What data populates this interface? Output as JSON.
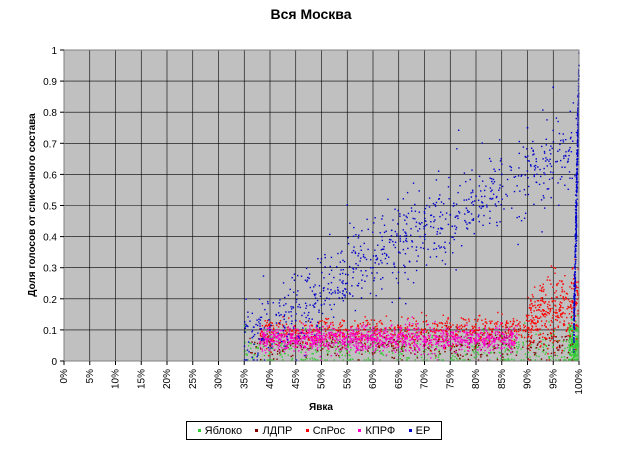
{
  "chart_data": {
    "type": "scatter",
    "title": "Вся Москва",
    "xlabel": "Явка",
    "ylabel": "Доля голосов от списочного состава",
    "xlim": [
      0,
      1
    ],
    "ylim": [
      0,
      1
    ],
    "x_ticks": [
      "0%",
      "5%",
      "10%",
      "15%",
      "20%",
      "25%",
      "30%",
      "35%",
      "40%",
      "45%",
      "50%",
      "55%",
      "60%",
      "65%",
      "70%",
      "75%",
      "80%",
      "85%",
      "90%",
      "95%",
      "100%"
    ],
    "y_ticks": [
      "0",
      "0.1",
      "0.2",
      "0.3",
      "0.4",
      "0.5",
      "0.6",
      "0.7",
      "0.8",
      "0.9",
      "1"
    ],
    "grid": true,
    "plot_background": "#c0c0c0",
    "legend_position": "bottom",
    "series": [
      {
        "name": "Яблоко",
        "color": "#33cc33",
        "clusters": [
          {
            "x": [
              0.35,
              0.99
            ],
            "y_center": [
              0.03,
              0.04
            ],
            "y_spread": 0.03
          },
          {
            "x": [
              0.98,
              1.0
            ],
            "y_center": [
              0.05,
              0.05
            ],
            "y_spread": 0.04
          }
        ],
        "sample_points": [
          [
            0.37,
            0.02
          ],
          [
            0.42,
            0.03
          ],
          [
            0.48,
            0.04
          ],
          [
            0.55,
            0.03
          ],
          [
            0.62,
            0.02
          ],
          [
            0.7,
            0.03
          ],
          [
            0.78,
            0.02
          ],
          [
            0.86,
            0.04
          ],
          [
            0.93,
            0.03
          ],
          [
            0.99,
            0.06
          ]
        ]
      },
      {
        "name": "ЛДПР",
        "color": "#800000",
        "clusters": [
          {
            "x": [
              0.36,
              0.99
            ],
            "y_center": [
              0.05,
              0.05
            ],
            "y_spread": 0.025
          }
        ],
        "sample_points": [
          [
            0.4,
            0.05
          ],
          [
            0.5,
            0.05
          ],
          [
            0.6,
            0.06
          ],
          [
            0.7,
            0.05
          ],
          [
            0.8,
            0.05
          ],
          [
            0.9,
            0.04
          ]
        ]
      },
      {
        "name": "СпРос",
        "color": "#ff0000",
        "clusters": [
          {
            "x": [
              0.38,
              0.9
            ],
            "y_center": [
              0.09,
              0.1
            ],
            "y_spread": 0.022
          },
          {
            "x": [
              0.9,
              1.0
            ],
            "y_center": [
              0.12,
              0.18
            ],
            "y_spread": 0.06
          }
        ],
        "sample_points": [
          [
            0.45,
            0.09
          ],
          [
            0.55,
            0.1
          ],
          [
            0.65,
            0.11
          ],
          [
            0.72,
            0.12
          ],
          [
            0.8,
            0.1
          ],
          [
            0.9,
            0.14
          ],
          [
            0.99,
            0.25
          ]
        ]
      },
      {
        "name": "КПРФ",
        "color": "#ff00cc",
        "clusters": [
          {
            "x": [
              0.38,
              0.88
            ],
            "y_center": [
              0.07,
              0.07
            ],
            "y_spread": 0.02
          }
        ],
        "sample_points": [
          [
            0.42,
            0.07
          ],
          [
            0.5,
            0.08
          ],
          [
            0.6,
            0.07
          ],
          [
            0.7,
            0.06
          ],
          [
            0.8,
            0.07
          ]
        ]
      },
      {
        "name": "ЕР",
        "color": "#0000cc",
        "clusters": [
          {
            "x": [
              0.35,
              1.0
            ],
            "y_center": [
              0.08,
              0.7
            ],
            "y_spread": 0.07
          },
          {
            "x": [
              0.99,
              1.0
            ],
            "y_center": [
              0.1,
              0.9
            ],
            "y_spread": 0.05
          }
        ],
        "sample_points": [
          [
            0.4,
            0.1
          ],
          [
            0.45,
            0.13
          ],
          [
            0.5,
            0.18
          ],
          [
            0.55,
            0.25
          ],
          [
            0.6,
            0.3
          ],
          [
            0.65,
            0.35
          ],
          [
            0.7,
            0.4
          ],
          [
            0.75,
            0.47
          ],
          [
            0.8,
            0.53
          ],
          [
            0.85,
            0.6
          ],
          [
            0.9,
            0.75
          ],
          [
            0.95,
            0.88
          ],
          [
            1.0,
            0.95
          ]
        ]
      }
    ]
  }
}
